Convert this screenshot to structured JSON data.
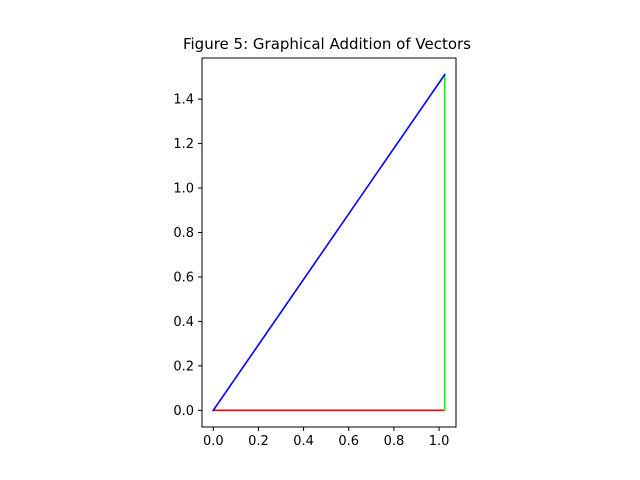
{
  "chart_data": {
    "type": "line",
    "title": "Figure 5: Graphical Addition of Vectors",
    "xlabel": "",
    "ylabel": "",
    "xlim": [
      -0.05,
      1.075
    ],
    "ylim": [
      -0.075,
      1.585
    ],
    "grid": false,
    "legend": "none",
    "x_ticks": [
      "0.0",
      "0.2",
      "0.4",
      "0.6",
      "0.8",
      "1.0"
    ],
    "x_tick_values": [
      0.0,
      0.2,
      0.4,
      0.6,
      0.8,
      1.0
    ],
    "y_ticks": [
      "0.0",
      "0.2",
      "0.4",
      "0.6",
      "0.8",
      "1.0",
      "1.2",
      "1.4"
    ],
    "y_tick_values": [
      0.0,
      0.2,
      0.4,
      0.6,
      0.8,
      1.0,
      1.2,
      1.4
    ],
    "series": [
      {
        "color": "#ff0000",
        "x": [
          0.0,
          1.025
        ],
        "y": [
          0.0,
          0.0
        ]
      },
      {
        "color": "#00ff00",
        "x": [
          1.025,
          1.025
        ],
        "y": [
          0.0,
          1.51
        ]
      },
      {
        "color": "#0000ff",
        "x": [
          0.0,
          1.025
        ],
        "y": [
          0.0,
          1.51
        ]
      }
    ]
  }
}
